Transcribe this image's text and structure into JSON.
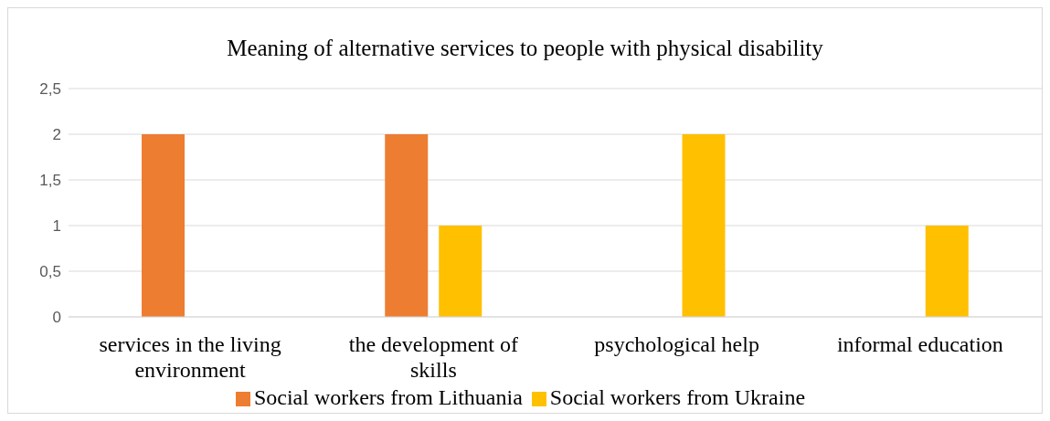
{
  "chart_data": {
    "type": "bar",
    "title": "Meaning of alternative services to people with physical disability",
    "categories": [
      "services in the living environment",
      "the development of skills",
      "psychological help",
      "informal education"
    ],
    "series": [
      {
        "name": "Social workers from Lithuania",
        "color": "#ed7d31",
        "values": [
          2,
          2,
          null,
          null
        ]
      },
      {
        "name": "Social workers from Ukraine",
        "color": "#ffc000",
        "values": [
          null,
          1,
          2,
          1
        ]
      }
    ],
    "ylim": [
      0,
      2.5
    ],
    "yticks": [
      0,
      {
        "value": 0.5,
        "label": "0,5"
      },
      1,
      {
        "value": 1.5,
        "label": "1,5"
      },
      2,
      {
        "value": 2.5,
        "label": "2,5"
      }
    ],
    "grid": "y",
    "legend": "bottom"
  }
}
